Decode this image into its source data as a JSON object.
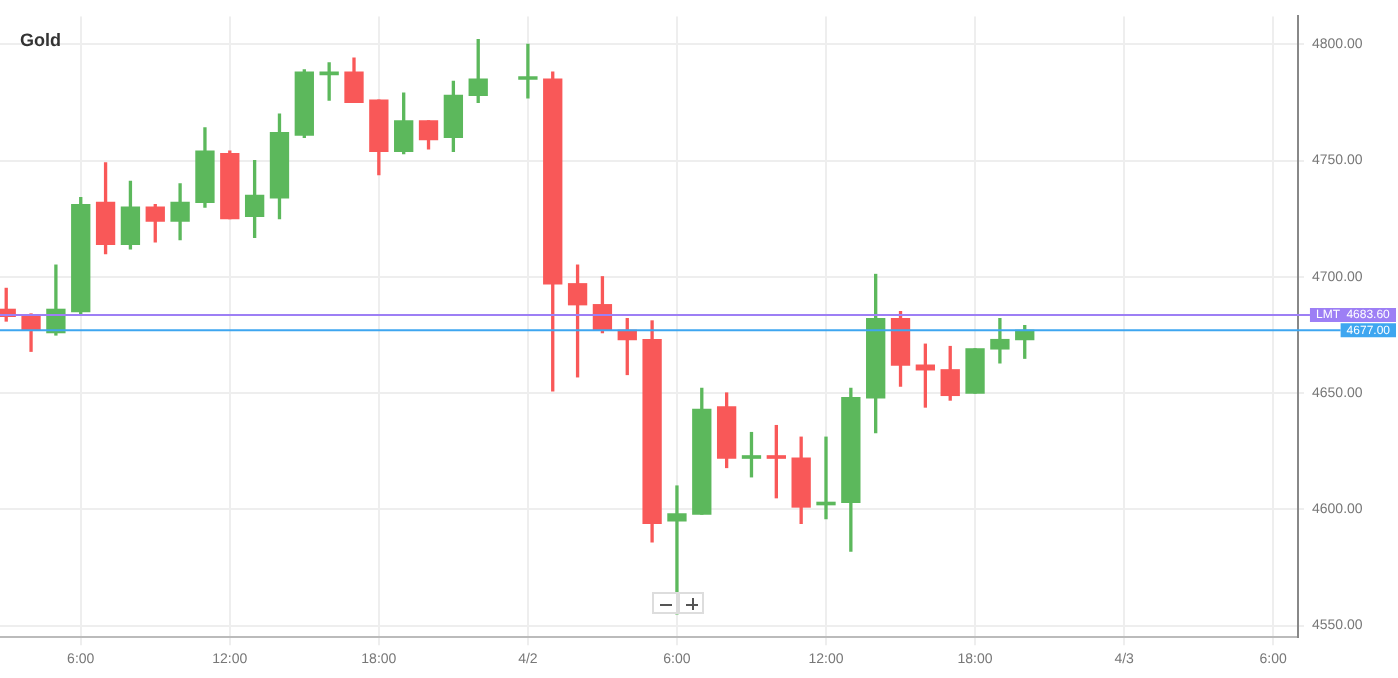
{
  "chart_data": {
    "type": "candlestick",
    "title": "Gold",
    "x": [
      "--04-01T03:00",
      "--04-01T04:00",
      "--04-01T05:00",
      "--04-01T06:00",
      "--04-01T07:00",
      "--04-01T08:00",
      "--04-01T09:00",
      "--04-01T10:00",
      "--04-01T11:00",
      "--04-01T12:00",
      "--04-01T13:00",
      "--04-01T14:00",
      "--04-01T15:00",
      "--04-01T16:00",
      "--04-01T17:00",
      "--04-01T18:00",
      "--04-01T19:00",
      "--04-01T20:00",
      "--04-01T21:00",
      "--04-01T22:00",
      "--04-02T00:00",
      "--04-02T01:00",
      "--04-02T02:00",
      "--04-02T03:00",
      "--04-02T04:00",
      "--04-02T05:00",
      "--04-02T06:00",
      "--04-02T07:00",
      "--04-02T08:00",
      "--04-02T09:00",
      "--04-02T10:00",
      "--04-02T11:00",
      "--04-02T12:00",
      "--04-02T13:00",
      "--04-02T14:00",
      "--04-02T15:00",
      "--04-02T16:00",
      "--04-02T17:00",
      "--04-02T18:00",
      "--04-02T19:00",
      "--04-02T20:00"
    ],
    "ohlc": [
      [
        4686,
        4695,
        4681,
        4683
      ],
      [
        4683,
        4684,
        4668,
        4677
      ],
      [
        4676,
        4705,
        4675,
        4686
      ],
      [
        4685,
        4734,
        4684,
        4731
      ],
      [
        4732,
        4749,
        4710,
        4714
      ],
      [
        4714,
        4741,
        4712,
        4730
      ],
      [
        4730,
        4731,
        4715,
        4724
      ],
      [
        4724,
        4740,
        4716,
        4732
      ],
      [
        4732,
        4764,
        4730,
        4754
      ],
      [
        4753,
        4754,
        4725,
        4725
      ],
      [
        4726,
        4750,
        4717,
        4735
      ],
      [
        4734,
        4770,
        4725,
        4762
      ],
      [
        4761,
        4789,
        4760,
        4788
      ],
      [
        4787,
        4792,
        4776,
        4788
      ],
      [
        4788,
        4794,
        4775,
        4775
      ],
      [
        4776,
        4776,
        4744,
        4754
      ],
      [
        4754,
        4779,
        4753,
        4767
      ],
      [
        4767,
        4767,
        4755,
        4759
      ],
      [
        4760,
        4784,
        4754,
        4778
      ],
      [
        4778,
        4802,
        4775,
        4785
      ],
      [
        4785,
        4800,
        4777,
        4786
      ],
      [
        4785,
        4788,
        4651,
        4697
      ],
      [
        4697,
        4705,
        4657,
        4688
      ],
      [
        4688,
        4700,
        4676,
        4677
      ],
      [
        4677,
        4682,
        4658,
        4673
      ],
      [
        4673,
        4681,
        4586,
        4594
      ],
      [
        4595,
        4610,
        4555,
        4598
      ],
      [
        4598,
        4652,
        4598,
        4643
      ],
      [
        4644,
        4650,
        4618,
        4622
      ],
      [
        4622,
        4633,
        4614,
        4623
      ],
      [
        4623,
        4636,
        4605,
        4622
      ],
      [
        4622,
        4631,
        4594,
        4601
      ],
      [
        4602,
        4631,
        4596,
        4603
      ],
      [
        4603,
        4652,
        4582,
        4648
      ],
      [
        4648,
        4701,
        4633,
        4682
      ],
      [
        4682,
        4685,
        4653,
        4662
      ],
      [
        4662,
        4671,
        4644,
        4660
      ],
      [
        4660,
        4670,
        4647,
        4649
      ],
      [
        4650,
        4669,
        4650,
        4669
      ],
      [
        4669,
        4682,
        4663,
        4673
      ],
      [
        4673,
        4679,
        4665,
        4677
      ]
    ],
    "xlim": [
      "--04-01T02:45",
      "--04-03T07:00"
    ],
    "xticks": [
      {
        "value": "--04-01T06:00",
        "label": "6:00"
      },
      {
        "value": "--04-01T12:00",
        "label": "12:00"
      },
      {
        "value": "--04-01T18:00",
        "label": "18:00"
      },
      {
        "value": "--04-02",
        "label": "4/2"
      },
      {
        "value": "--04-02T06:00",
        "label": "6:00"
      },
      {
        "value": "--04-02T12:00",
        "label": "12:00"
      },
      {
        "value": "--04-02T18:00",
        "label": "18:00"
      },
      {
        "value": "--04-03",
        "label": "4/3"
      },
      {
        "value": "--04-03T06:00",
        "label": "6:00"
      }
    ],
    "ylim": [
      4545,
      4812
    ],
    "yticks": [
      {
        "value": 4550,
        "label": "4550.00"
      },
      {
        "value": 4600,
        "label": "4600.00"
      },
      {
        "value": 4650,
        "label": "4650.00"
      },
      {
        "value": 4700,
        "label": "4700.00"
      },
      {
        "value": 4750,
        "label": "4750.00"
      },
      {
        "value": 4800,
        "label": "4800.00"
      }
    ],
    "ref_lines": [
      {
        "axis": "y",
        "value": 4683.6,
        "label": "LMT  4683.60",
        "color": "#9d7ff5"
      },
      {
        "axis": "y",
        "value": 4677,
        "label": "4677.00",
        "color": "#3ea6f0"
      }
    ],
    "grid": true,
    "legend": false
  }
}
